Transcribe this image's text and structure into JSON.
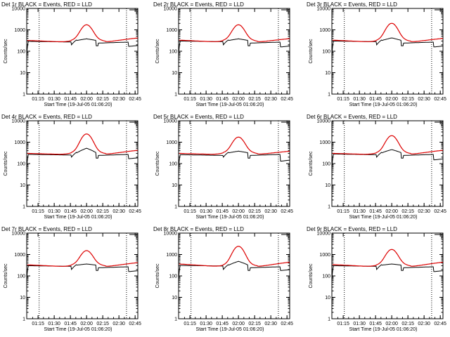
{
  "chart_data": [
    {
      "type": "line",
      "title": "Det 1r BLACK = Events, RED = LLD",
      "xlabel": "Start Time (19-Jul-05 01:06:20)",
      "ylabel": "Counts/sec",
      "yscale": "log",
      "ylim": [
        1,
        10000
      ]
    },
    {
      "type": "line",
      "title": "Det 2r BLACK = Events, RED = LLD",
      "xlabel": "Start Time (19-Jul-05 01:06:20)",
      "ylabel": "Counts/sec",
      "yscale": "log",
      "ylim": [
        1,
        10000
      ]
    },
    {
      "type": "line",
      "title": "Det 3r BLACK = Events, RED = LLD",
      "xlabel": "Start Time (19-Jul-05 01:06:20)",
      "ylabel": "Counts/sec",
      "yscale": "log",
      "ylim": [
        1,
        10000
      ]
    },
    {
      "type": "line",
      "title": "Det 4r BLACK = Events, RED = LLD",
      "xlabel": "Start Time (19-Jul-05 01:06:20)",
      "ylabel": "Counts/sec",
      "yscale": "log",
      "ylim": [
        1,
        10000
      ]
    },
    {
      "type": "line",
      "title": "Det 5r BLACK = Events, RED = LLD",
      "xlabel": "Start Time (19-Jul-05 01:06:20)",
      "ylabel": "Counts/sec",
      "yscale": "log",
      "ylim": [
        1,
        10000
      ]
    },
    {
      "type": "line",
      "title": "Det 6r BLACK = Events, RED = LLD",
      "xlabel": "Start Time (19-Jul-05 01:06:20)",
      "ylabel": "Counts/sec",
      "yscale": "log",
      "ylim": [
        1,
        10000
      ]
    },
    {
      "type": "line",
      "title": "Det 7r BLACK = Events, RED = LLD",
      "xlabel": "Start Time (19-Jul-05 01:06:20)",
      "ylabel": "Counts/sec",
      "yscale": "log",
      "ylim": [
        1,
        10000
      ]
    },
    {
      "type": "line",
      "title": "Det 8r BLACK = Events, RED = LLD",
      "xlabel": "Start Time (19-Jul-05 01:06:20)",
      "ylabel": "Counts/sec",
      "yscale": "log",
      "ylim": [
        1,
        10000
      ]
    },
    {
      "type": "line",
      "title": "Det 9r BLACK = Events, RED = LLD",
      "xlabel": "Start Time (19-Jul-05 01:06:20)",
      "ylabel": "Counts/sec",
      "yscale": "log",
      "ylim": [
        1,
        10000
      ]
    }
  ],
  "shared": {
    "x_range_min": [
      64.5,
      167.5
    ],
    "x_ticks": [
      75,
      90,
      105,
      120,
      135,
      150,
      165
    ],
    "x_tick_labels": [
      "01:15",
      "01:30",
      "01:45",
      "02:00",
      "02:15",
      "02:30",
      "02:45"
    ],
    "y_ticks": [
      1,
      10,
      100,
      1000,
      10000
    ],
    "y_tick_labels": [
      "1",
      "10",
      "100",
      "1000",
      "10000"
    ],
    "dotted_markers_min": [
      76,
      157
    ],
    "series_names": [
      "Events",
      "LLD"
    ],
    "series_colors": [
      "#000000",
      "#dd0000"
    ],
    "flare_peaks": {
      "lld": [
        1500,
        1500,
        1800,
        2200,
        1500,
        1800,
        1300,
        2200,
        1500
      ],
      "events": [
        380,
        380,
        420,
        520,
        380,
        450,
        360,
        480,
        360
      ]
    },
    "series_levels": {
      "lld_start": [
        320,
        330,
        330,
        300,
        300,
        300,
        330,
        360,
        340
      ],
      "lld_end": [
        420,
        390,
        400,
        420,
        380,
        420,
        420,
        440,
        440
      ],
      "events_start": [
        290,
        300,
        300,
        270,
        260,
        280,
        300,
        310,
        300
      ],
      "events_end": [
        170,
        160,
        160,
        170,
        130,
        150,
        160,
        180,
        160
      ]
    }
  }
}
